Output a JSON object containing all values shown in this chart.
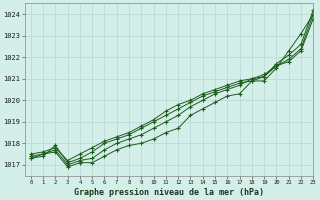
{
  "bg_color": "#d4eeea",
  "plot_bg_color": "#d4eeea",
  "grid_color": "#b8d8d2",
  "line_color": "#1a5c1a",
  "title": "Graphe pression niveau de la mer (hPa)",
  "xlim": [
    -0.5,
    23
  ],
  "ylim": [
    1016.5,
    1024.5
  ],
  "yticks": [
    1017,
    1018,
    1019,
    1020,
    1021,
    1022,
    1023,
    1024
  ],
  "xticks": [
    0,
    1,
    2,
    3,
    4,
    5,
    6,
    7,
    8,
    9,
    10,
    11,
    12,
    13,
    14,
    15,
    16,
    17,
    18,
    19,
    20,
    21,
    22,
    23
  ],
  "series": [
    [
      1017.3,
      1017.5,
      1017.6,
      1016.9,
      1017.1,
      1017.1,
      1017.4,
      1017.7,
      1017.9,
      1018.0,
      1018.2,
      1018.5,
      1018.7,
      1019.3,
      1019.6,
      1019.9,
      1020.2,
      1020.3,
      1020.9,
      1020.9,
      1021.5,
      1022.3,
      1023.1,
      1024.0
    ],
    [
      1017.4,
      1017.5,
      1017.7,
      1017.0,
      1017.2,
      1017.3,
      1017.7,
      1018.0,
      1018.2,
      1018.4,
      1018.7,
      1019.0,
      1019.3,
      1019.7,
      1020.0,
      1020.3,
      1020.5,
      1020.7,
      1021.0,
      1021.1,
      1021.6,
      1021.8,
      1022.3,
      1023.8
    ],
    [
      1017.5,
      1017.6,
      1017.8,
      1017.2,
      1017.5,
      1017.8,
      1018.1,
      1018.3,
      1018.5,
      1018.8,
      1019.1,
      1019.5,
      1019.8,
      1020.0,
      1020.3,
      1020.5,
      1020.7,
      1020.9,
      1021.0,
      1021.2,
      1021.6,
      1021.9,
      1022.4,
      1024.0
    ],
    [
      1017.3,
      1017.4,
      1017.9,
      1017.1,
      1017.3,
      1017.6,
      1018.0,
      1018.2,
      1018.4,
      1018.7,
      1019.0,
      1019.3,
      1019.6,
      1019.9,
      1020.2,
      1020.4,
      1020.6,
      1020.8,
      1020.9,
      1021.1,
      1021.7,
      1022.1,
      1022.6,
      1024.2
    ]
  ]
}
